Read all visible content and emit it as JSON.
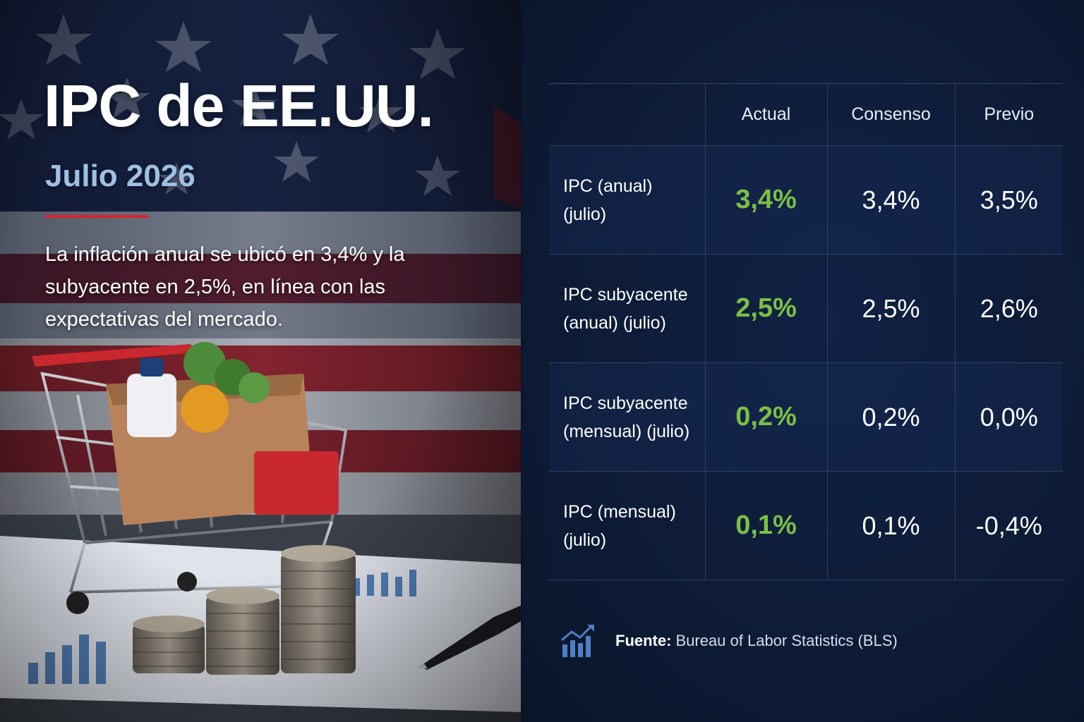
{
  "hero": {
    "title": "IPC de EE.UU.",
    "subtitle": "Julio 2026",
    "description": "La inflación anual se ubicó en 3,4% y la subyacente en 2,5%, en línea con las expectativas del mercado."
  },
  "table": {
    "headers": [
      "",
      "Actual",
      "Consenso",
      "Previo"
    ],
    "rows": [
      {
        "label_line1": "IPC (anual)",
        "label_line2": "(julio)",
        "actual": "3,4%",
        "consensus": "3,4%",
        "previous": "3,5%"
      },
      {
        "label_line1": "IPC subyacente",
        "label_line2": "(anual) (julio)",
        "actual": "2,5%",
        "consensus": "2,5%",
        "previous": "2,6%"
      },
      {
        "label_line1": "IPC subyacente",
        "label_line2": "(mensual) (julio)",
        "actual": "0,2%",
        "consensus": "0,2%",
        "previous": "0,0%"
      },
      {
        "label_line1": "IPC (mensual)",
        "label_line2": "(julio)",
        "actual": "0,1%",
        "consensus": "0,1%",
        "previous": "-0,4%"
      }
    ]
  },
  "source": {
    "label": "Fuente:",
    "text": "Bureau of Labor Statistics (BLS)",
    "icon": "bar-chart-trend-icon"
  },
  "colors": {
    "actual_value": "#7bc043",
    "accent_rule": "#d6262e",
    "subtitle": "#9fc0e2",
    "panel_background": "#0d1b36"
  }
}
